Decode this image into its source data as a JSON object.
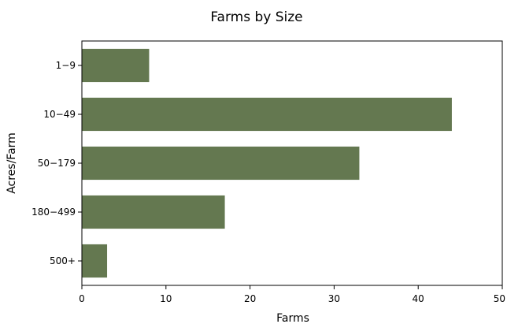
{
  "chart_data": {
    "type": "bar",
    "orientation": "horizontal",
    "title": "Farms by Size",
    "xlabel": "Farms",
    "ylabel": "Acres/Farm",
    "categories": [
      "1−9",
      "10−49",
      "50−179",
      "180−499",
      "500+"
    ],
    "values": [
      8,
      44,
      33,
      17,
      3
    ],
    "xlim": [
      0,
      50
    ],
    "xticks": [
      0,
      10,
      20,
      30,
      40,
      50
    ],
    "grid": false,
    "bar_color": "#647850"
  }
}
